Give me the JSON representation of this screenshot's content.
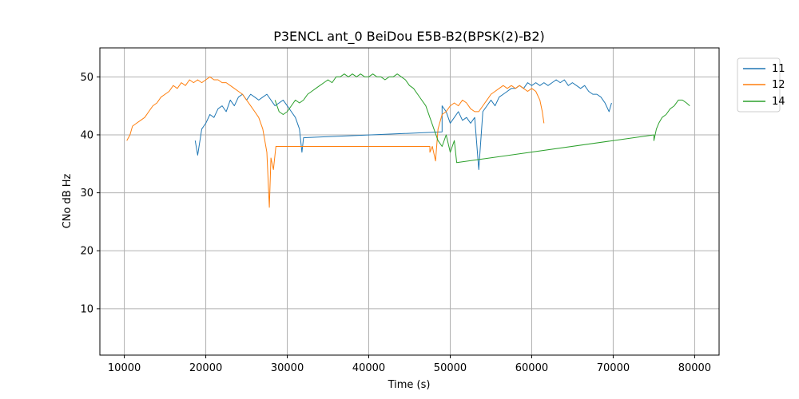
{
  "chart_data": {
    "type": "line",
    "title": "P3ENCL ant_0 BeiDou E5B-B2(BPSK(2)-B2)",
    "xlabel": "Time (s)",
    "ylabel": "CNo dB Hz",
    "xlim": [
      7000,
      83000
    ],
    "ylim": [
      2,
      55
    ],
    "x_ticks": [
      10000,
      20000,
      30000,
      40000,
      50000,
      60000,
      70000,
      80000
    ],
    "y_ticks": [
      10,
      20,
      30,
      40,
      50
    ],
    "x_tick_labels": [
      "10000",
      "20000",
      "30000",
      "40000",
      "50000",
      "60000",
      "70000",
      "80000"
    ],
    "y_tick_labels": [
      "10",
      "20",
      "30",
      "40",
      "50"
    ],
    "grid": true,
    "legend_position": "outside-top-right",
    "series": [
      {
        "name": "11",
        "color": "#1f77b4",
        "points": [
          [
            18700,
            39
          ],
          [
            19000,
            36.5
          ],
          [
            19500,
            41
          ],
          [
            20000,
            42
          ],
          [
            20500,
            43.5
          ],
          [
            21000,
            43
          ],
          [
            21500,
            44.5
          ],
          [
            22000,
            45
          ],
          [
            22500,
            44
          ],
          [
            23000,
            46
          ],
          [
            23500,
            45
          ],
          [
            24000,
            46.5
          ],
          [
            24500,
            47
          ],
          [
            25000,
            46
          ],
          [
            25500,
            47
          ],
          [
            26000,
            46.5
          ],
          [
            26500,
            46
          ],
          [
            27000,
            46.5
          ],
          [
            27500,
            47
          ],
          [
            28000,
            46
          ],
          [
            28500,
            45
          ],
          [
            29000,
            45.5
          ],
          [
            29500,
            46
          ],
          [
            30000,
            45
          ],
          [
            30500,
            44
          ],
          [
            31000,
            43
          ],
          [
            31500,
            41
          ],
          [
            31800,
            37
          ],
          [
            32000,
            39.5
          ],
          [
            49000,
            40.5
          ],
          [
            49000,
            45
          ],
          [
            49500,
            44
          ],
          [
            50000,
            42
          ],
          [
            50500,
            43
          ],
          [
            51000,
            44
          ],
          [
            51500,
            42.5
          ],
          [
            52000,
            43
          ],
          [
            52500,
            42
          ],
          [
            53000,
            43
          ],
          [
            53500,
            34
          ],
          [
            54000,
            44
          ],
          [
            54500,
            45
          ],
          [
            55000,
            46
          ],
          [
            55500,
            45
          ],
          [
            56000,
            46.5
          ],
          [
            56500,
            47
          ],
          [
            57000,
            47.5
          ],
          [
            57500,
            48
          ],
          [
            58000,
            48
          ],
          [
            58500,
            48.5
          ],
          [
            59000,
            48
          ],
          [
            59500,
            49
          ],
          [
            60000,
            48.5
          ],
          [
            60500,
            49
          ],
          [
            61000,
            48.5
          ],
          [
            61500,
            49
          ],
          [
            62000,
            48.5
          ],
          [
            62500,
            49
          ],
          [
            63000,
            49.5
          ],
          [
            63500,
            49
          ],
          [
            64000,
            49.5
          ],
          [
            64500,
            48.5
          ],
          [
            65000,
            49
          ],
          [
            65500,
            48.5
          ],
          [
            66000,
            48
          ],
          [
            66500,
            48.5
          ],
          [
            67000,
            47.5
          ],
          [
            67500,
            47
          ],
          [
            68000,
            47
          ],
          [
            68500,
            46.5
          ],
          [
            69000,
            45.5
          ],
          [
            69500,
            44
          ],
          [
            69800,
            45.5
          ]
        ]
      },
      {
        "name": "12",
        "color": "#ff7f0e",
        "points": [
          [
            10300,
            39
          ],
          [
            10700,
            40
          ],
          [
            11000,
            41.5
          ],
          [
            11500,
            42
          ],
          [
            12000,
            42.5
          ],
          [
            12500,
            43
          ],
          [
            13000,
            44
          ],
          [
            13500,
            45
          ],
          [
            14000,
            45.5
          ],
          [
            14500,
            46.5
          ],
          [
            15000,
            47
          ],
          [
            15500,
            47.5
          ],
          [
            16000,
            48.5
          ],
          [
            16500,
            48
          ],
          [
            17000,
            49
          ],
          [
            17500,
            48.5
          ],
          [
            18000,
            49.5
          ],
          [
            18500,
            49
          ],
          [
            19000,
            49.5
          ],
          [
            19500,
            49
          ],
          [
            20000,
            49.5
          ],
          [
            20500,
            50
          ],
          [
            21000,
            49.5
          ],
          [
            21500,
            49.5
          ],
          [
            22000,
            49
          ],
          [
            22500,
            49
          ],
          [
            23000,
            48.5
          ],
          [
            23500,
            48
          ],
          [
            24000,
            47.5
          ],
          [
            24500,
            47
          ],
          [
            25000,
            46
          ],
          [
            25500,
            45
          ],
          [
            26000,
            44
          ],
          [
            26500,
            43
          ],
          [
            27000,
            41
          ],
          [
            27500,
            37
          ],
          [
            27800,
            27.5
          ],
          [
            28000,
            36
          ],
          [
            28300,
            34
          ],
          [
            28600,
            38
          ],
          [
            47500,
            38
          ],
          [
            47500,
            37
          ],
          [
            47800,
            38
          ],
          [
            48200,
            35.5
          ],
          [
            48500,
            41
          ],
          [
            49000,
            43.5
          ],
          [
            49500,
            44
          ],
          [
            50000,
            45
          ],
          [
            50500,
            45.5
          ],
          [
            51000,
            45
          ],
          [
            51500,
            46
          ],
          [
            52000,
            45.5
          ],
          [
            52500,
            44.5
          ],
          [
            53000,
            44
          ],
          [
            53500,
            44
          ],
          [
            54000,
            45
          ],
          [
            54500,
            46
          ],
          [
            55000,
            47
          ],
          [
            55500,
            47.5
          ],
          [
            56000,
            48
          ],
          [
            56500,
            48.5
          ],
          [
            57000,
            48
          ],
          [
            57500,
            48.5
          ],
          [
            58000,
            48
          ],
          [
            58500,
            48.5
          ],
          [
            59000,
            48
          ],
          [
            59500,
            47.5
          ],
          [
            60000,
            48
          ],
          [
            60500,
            47.5
          ],
          [
            61000,
            46
          ],
          [
            61300,
            44
          ],
          [
            61500,
            42
          ]
        ]
      },
      {
        "name": "14",
        "color": "#2ca02c",
        "points": [
          [
            28500,
            46
          ],
          [
            29000,
            44
          ],
          [
            29500,
            43.5
          ],
          [
            30000,
            44
          ],
          [
            30500,
            45
          ],
          [
            31000,
            46
          ],
          [
            31500,
            45.5
          ],
          [
            32000,
            46
          ],
          [
            32500,
            47
          ],
          [
            33000,
            47.5
          ],
          [
            33500,
            48
          ],
          [
            34000,
            48.5
          ],
          [
            34500,
            49
          ],
          [
            35000,
            49.5
          ],
          [
            35500,
            49
          ],
          [
            36000,
            50
          ],
          [
            36500,
            50
          ],
          [
            37000,
            50.5
          ],
          [
            37500,
            50
          ],
          [
            38000,
            50.5
          ],
          [
            38500,
            50
          ],
          [
            39000,
            50.5
          ],
          [
            39500,
            50
          ],
          [
            40000,
            50
          ],
          [
            40500,
            50.5
          ],
          [
            41000,
            50
          ],
          [
            41500,
            50
          ],
          [
            42000,
            49.5
          ],
          [
            42500,
            50
          ],
          [
            43000,
            50
          ],
          [
            43500,
            50.5
          ],
          [
            44000,
            50
          ],
          [
            44500,
            49.5
          ],
          [
            45000,
            48.5
          ],
          [
            45500,
            48
          ],
          [
            46000,
            47
          ],
          [
            46500,
            46
          ],
          [
            47000,
            45
          ],
          [
            47500,
            43
          ],
          [
            48000,
            41
          ],
          [
            48500,
            39
          ],
          [
            49000,
            38
          ],
          [
            49500,
            40
          ],
          [
            50000,
            37
          ],
          [
            50500,
            39
          ],
          [
            50800,
            35.2
          ],
          [
            75000,
            40
          ],
          [
            75000,
            39
          ],
          [
            75300,
            41
          ],
          [
            75600,
            42
          ],
          [
            76000,
            43
          ],
          [
            76500,
            43.5
          ],
          [
            77000,
            44.5
          ],
          [
            77500,
            45
          ],
          [
            78000,
            46
          ],
          [
            78500,
            46
          ],
          [
            79000,
            45.5
          ],
          [
            79400,
            45
          ]
        ]
      }
    ]
  }
}
